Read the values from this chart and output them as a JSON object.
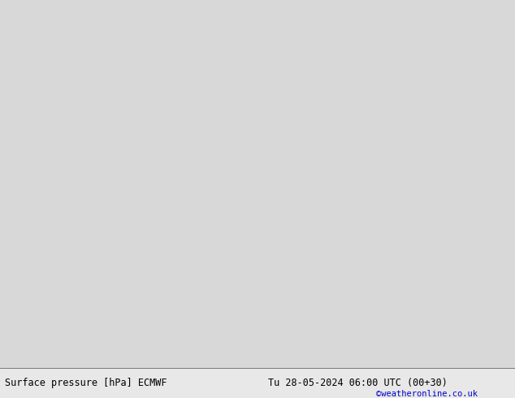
{
  "title_left": "Surface pressure [hPa] ECMWF",
  "title_right": "Tu 28-05-2024 06:00 UTC (00+30)",
  "watermark": "©weatheronline.co.uk",
  "bg_ocean": "#d8d8d8",
  "land_color": "#c8f0c0",
  "coast_color": "#808080",
  "blue_color": "#0000dd",
  "black_color": "#000000",
  "red_color": "#dd0000",
  "extent": [
    -25,
    15,
    44,
    67
  ],
  "footer_fontsize": 8.5,
  "watermark_fontsize": 7.5
}
